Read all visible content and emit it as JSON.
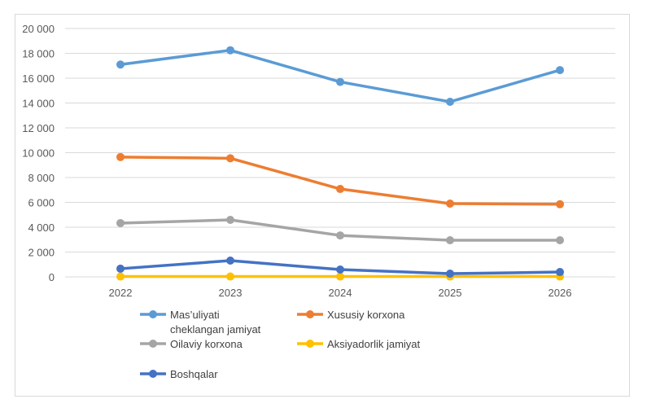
{
  "chart_data": {
    "type": "line",
    "title": "",
    "xlabel": "",
    "ylabel": "",
    "categories": [
      "2022",
      "2023",
      "2024",
      "2025",
      "2026"
    ],
    "ylim": [
      0,
      20000
    ],
    "yticks": [
      0,
      2000,
      4000,
      6000,
      8000,
      10000,
      12000,
      14000,
      16000,
      18000,
      20000
    ],
    "ytick_labels": [
      "0",
      "2 000",
      "4 000",
      "6 000",
      "8 000",
      "10 000",
      "12 000",
      "14 000",
      "16 000",
      "18 000",
      "20 000"
    ],
    "grid": true,
    "legend_position": "bottom",
    "series": [
      {
        "name": "Mas’uliyati cheklangan jamiyat",
        "label_lines": [
          "Mas’uliyati",
          "cheklangan jamiyat"
        ],
        "color": "#5b9bd5",
        "values": [
          17100,
          18250,
          15700,
          14100,
          16650
        ]
      },
      {
        "name": "Xususiy korxona",
        "label_lines": [
          "Xususiy korxona"
        ],
        "color": "#ed7d31",
        "values": [
          9650,
          9550,
          7080,
          5900,
          5850
        ]
      },
      {
        "name": "Oilaviy korxona",
        "label_lines": [
          "Oilaviy korxona"
        ],
        "color": "#a5a5a5",
        "values": [
          4330,
          4590,
          3340,
          2950,
          2950
        ]
      },
      {
        "name": "Aksiyadorlik jamiyat",
        "label_lines": [
          "Aksiyadorlik jamiyat"
        ],
        "color": "#ffc000",
        "values": [
          30,
          30,
          30,
          30,
          30
        ]
      },
      {
        "name": "Boshqalar",
        "label_lines": [
          "Boshqalar"
        ],
        "color": "#4472c4",
        "values": [
          660,
          1310,
          590,
          260,
          390
        ]
      }
    ]
  }
}
